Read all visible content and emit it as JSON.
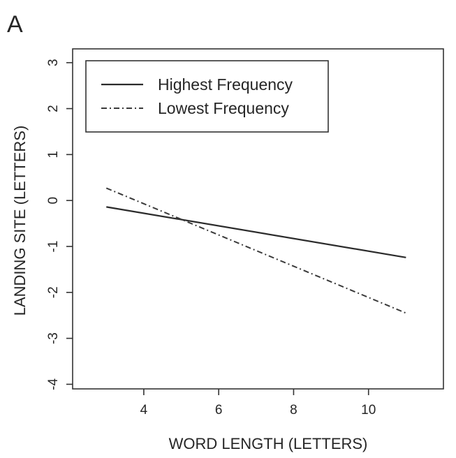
{
  "panel_label": "A",
  "chart_data": {
    "type": "line",
    "xlabel": "WORD LENGTH (LETTERS)",
    "ylabel": "LANDING SITE (LETTERS)",
    "xlim": [
      2.1,
      12.0
    ],
    "ylim": [
      -4.1,
      3.3
    ],
    "x_ticks": [
      4,
      6,
      8,
      10
    ],
    "y_ticks": [
      -4,
      -3,
      -2,
      -1,
      0,
      1,
      2,
      3
    ],
    "x_tick_labels": [
      "4",
      "6",
      "8",
      "10"
    ],
    "y_tick_labels": [
      "-4",
      "-3",
      "-2",
      "-1",
      "0",
      "1",
      "2",
      "3"
    ],
    "grid": false,
    "legend_position": "top-left",
    "series": [
      {
        "name": "Highest Frequency",
        "style": "solid",
        "x": [
          3,
          11
        ],
        "y": [
          -0.14,
          -1.24
        ]
      },
      {
        "name": "Lowest Frequency",
        "style": "dash-dot",
        "x": [
          3,
          11
        ],
        "y": [
          0.27,
          -2.45
        ]
      }
    ]
  }
}
